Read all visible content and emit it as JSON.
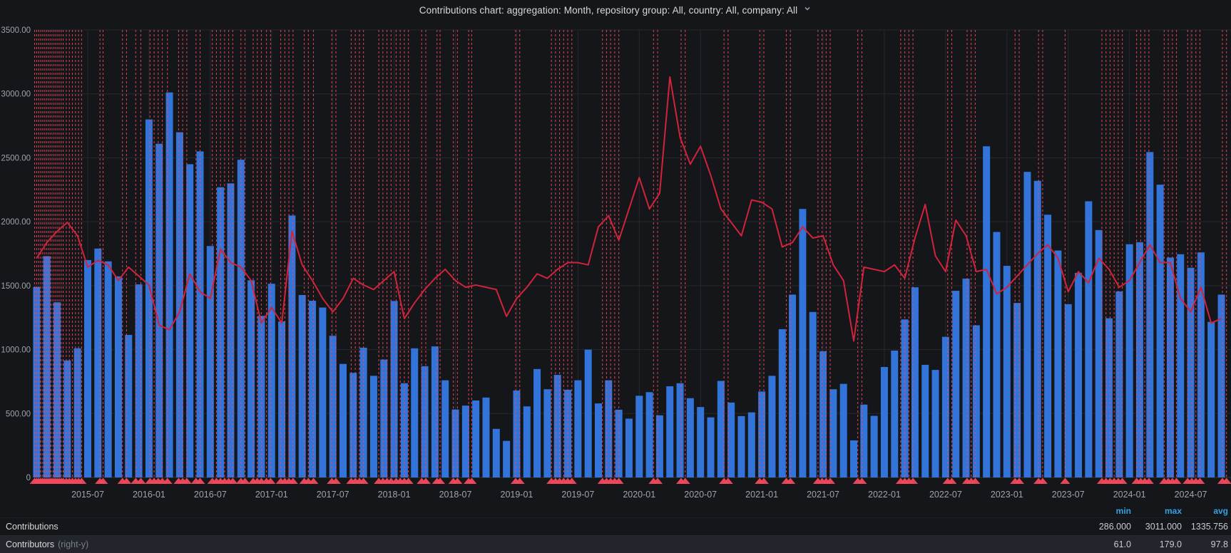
{
  "title": {
    "text": "Contributions chart: aggregation: Month, repository group: All, country: All, company: All",
    "dropdown_icon": "chevron-down-icon"
  },
  "legend": {
    "headers": {
      "min": "min",
      "max": "max",
      "avg": "avg"
    },
    "rows": [
      {
        "name": "Contributions",
        "suffix": "",
        "min": "286.000",
        "max": "3011.000",
        "avg": "1335.756"
      },
      {
        "name": "Contributors",
        "suffix": "(right-y)",
        "min": "61.0",
        "max": "179.0",
        "avg": "97.8"
      }
    ]
  },
  "chart_data": {
    "type": "bar+line",
    "start_month": "2015-02",
    "left_axis": {
      "range": [
        0,
        3500
      ],
      "tick_values": [
        0,
        500,
        1000,
        1500,
        2000,
        2500,
        3000,
        3500
      ],
      "tick_labels": [
        "0",
        "500.00",
        "1000.00",
        "1500.00",
        "2000.00",
        "2500.00",
        "3000.00",
        "3500.00"
      ]
    },
    "right_axis": {
      "range": [
        0,
        200
      ],
      "tick_labels": []
    },
    "x_axis": {
      "tick_labels": [
        "2015-07",
        "2016-01",
        "2016-07",
        "2017-01",
        "2017-07",
        "2018-01",
        "2018-07",
        "2019-01",
        "2019-07",
        "2020-01",
        "2020-07",
        "2021-01",
        "2021-07",
        "2022-01",
        "2022-07",
        "2023-01",
        "2023-07",
        "2024-01",
        "2024-07"
      ],
      "first_tick_month_index": 5,
      "tick_step_months": 6
    },
    "series": [
      {
        "name": "Contributions",
        "type": "bar",
        "axis": "left",
        "color": "#3274d9",
        "values": [
          1490,
          1731,
          1370,
          915,
          1010,
          1700,
          1790,
          1690,
          1573,
          1115,
          1510,
          2800,
          2610,
          3011,
          2700,
          2450,
          2550,
          1810,
          2270,
          2300,
          2485,
          1542,
          1264,
          1515,
          1220,
          2049,
          1427,
          1382,
          1329,
          1108,
          888,
          818,
          1015,
          795,
          922,
          1380,
          737,
          1010,
          870,
          1025,
          760,
          532,
          562,
          602,
          625,
          380,
          286,
          680,
          556,
          848,
          690,
          802,
          686,
          760,
          1000,
          579,
          760,
          530,
          460,
          639,
          667,
          486,
          713,
          737,
          620,
          551,
          470,
          755,
          586,
          480,
          509,
          672,
          795,
          1160,
          1430,
          2100,
          1294,
          987,
          690,
          732,
          290,
          570,
          482,
          864,
          992,
          1236,
          1487,
          881,
          841,
          1100,
          1460,
          1555,
          1190,
          2590,
          1920,
          1655,
          1365,
          2390,
          2320,
          2055,
          1775,
          1355,
          1600,
          2160,
          1935,
          1245,
          1455,
          1824,
          1840,
          2545,
          2290,
          1720,
          1746,
          1640,
          1760,
          1217,
          1430
        ]
      },
      {
        "name": "Contributors",
        "type": "line",
        "axis": "right",
        "color": "#d2233c",
        "values": [
          98,
          105,
          110,
          114,
          108,
          94,
          97,
          95,
          88,
          94,
          90,
          86,
          68,
          66,
          74,
          91,
          83,
          80,
          102,
          96,
          94,
          88,
          69,
          76,
          69,
          110,
          95,
          88,
          80,
          74,
          80,
          89,
          86,
          84,
          88,
          92,
          71,
          78,
          84,
          89,
          93,
          88,
          85,
          86,
          85,
          84,
          72,
          80,
          85,
          91,
          89,
          93,
          96,
          96,
          95,
          112,
          117,
          106,
          120,
          134,
          120,
          127,
          179,
          152,
          140,
          148,
          135,
          120,
          114,
          108,
          124,
          123,
          120,
          103,
          105,
          112,
          107,
          108,
          95,
          88,
          61,
          94,
          93,
          92,
          95,
          89,
          107,
          122,
          99,
          92,
          115,
          108,
          92,
          93,
          82,
          85,
          90,
          95,
          100,
          104,
          98,
          83,
          92,
          87,
          98,
          93,
          85,
          88,
          96,
          104,
          96,
          96,
          80,
          74,
          85,
          69,
          71
        ]
      }
    ],
    "annotations": {
      "color": "#f2495c",
      "style": "dashed-vertical-line-with-triangle-marker",
      "month_positions": [
        -0.2,
        0,
        0.2,
        0.4,
        0.6,
        0.8,
        1,
        1.2,
        1.4,
        1.6,
        1.8,
        2,
        2.2,
        2.4,
        2.6,
        2.9,
        3.2,
        3.5,
        3.8,
        4.1,
        4.4,
        6.2,
        6.5,
        8.4,
        8.8,
        9.7,
        10.2,
        11.1,
        11.5,
        11.9,
        12.3,
        12.8,
        13.9,
        14.3,
        14.7,
        15.6,
        16,
        17.2,
        17.6,
        18,
        18.4,
        18.8,
        19.2,
        20,
        20.4,
        21.2,
        21.6,
        22,
        22.5,
        22.9,
        23.9,
        24.3,
        24.7,
        25.1,
        26.2,
        26.6,
        27.1,
        28.9,
        29.3,
        30.8,
        31.2,
        31.6,
        32,
        33.5,
        33.9,
        34.3,
        34.7,
        35.2,
        35.6,
        36,
        36.4,
        37.7,
        38.1,
        39.2,
        39.5,
        40.8,
        41.2,
        42.3,
        42.6,
        46.9,
        47.3,
        50.4,
        50.8,
        51.2,
        51.6,
        52,
        52.4,
        55.4,
        55.8,
        56.2,
        56.6,
        57,
        60.4,
        60.8,
        63.1,
        63.5,
        67.3,
        67.7,
        70.8,
        71.2,
        73.4,
        73.8,
        76.5,
        76.9,
        77.3,
        77.7,
        80.4,
        80.8,
        84.6,
        85,
        85.4,
        85.8,
        89.2,
        89.6,
        91.1,
        91.5,
        91.9,
        95.8,
        96.2,
        98.1,
        98.5,
        100.7,
        104.3,
        104.7,
        105.1,
        105.5,
        105.9,
        106.3,
        107.7,
        108.1,
        108.5,
        108.9,
        110.4,
        110.8,
        111.2,
        111.6,
        112.7,
        113.1,
        113.5,
        113.9,
        116.1,
        116.5
      ]
    },
    "grid": true,
    "legend_position": "bottom",
    "theme": {
      "background": "#141619",
      "gridline": "#26282d",
      "zero_line": "#33363c",
      "axis_label_color": "#9ea3ab",
      "legend_header_color": "#33a2e5"
    }
  }
}
